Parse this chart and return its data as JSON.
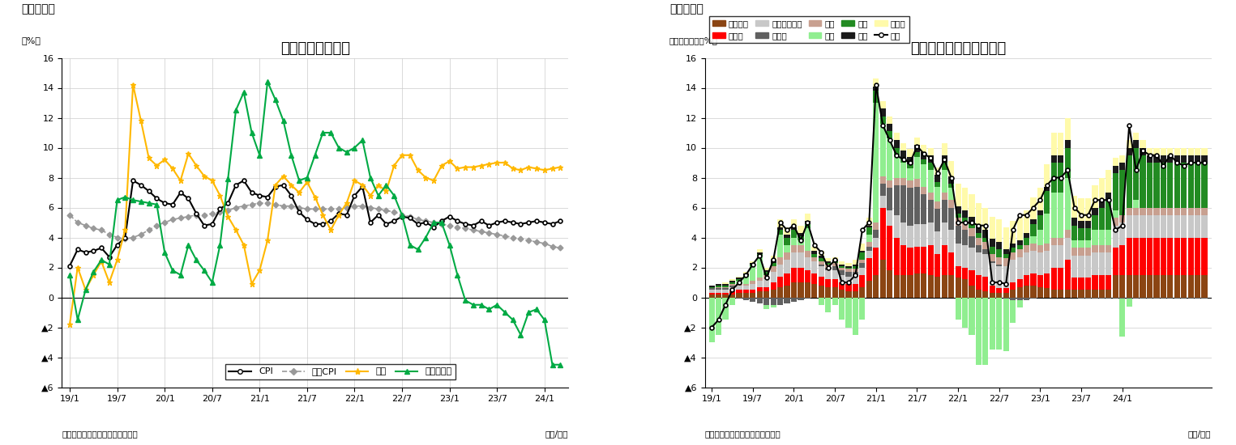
{
  "fig1": {
    "title": "消費者物価上昇率",
    "header": "（図表１）",
    "ylabel": "（%）",
    "footer_left": "（資料）インド統計・計画実施省",
    "footer_right": "（年/月）",
    "ylim": [
      -6,
      16
    ],
    "xtick_labels": [
      "19/1",
      "19/7",
      "20/1",
      "20/7",
      "21/1",
      "21/7",
      "22/1",
      "22/7",
      "23/1",
      "23/7",
      "24/1"
    ],
    "xtick_positions": [
      0,
      6,
      12,
      18,
      24,
      30,
      36,
      42,
      48,
      54,
      60
    ],
    "CPI": [
      2.1,
      3.2,
      3.0,
      3.1,
      3.3,
      2.7,
      3.5,
      4.0,
      7.8,
      7.5,
      7.1,
      6.6,
      6.3,
      6.2,
      7.0,
      6.6,
      5.6,
      4.8,
      4.9,
      5.9,
      6.3,
      7.5,
      7.8,
      7.0,
      6.8,
      6.7,
      7.4,
      7.5,
      6.8,
      5.7,
      5.2,
      4.9,
      4.9,
      5.1,
      5.6,
      5.5,
      6.8,
      7.4,
      5.0,
      5.5,
      4.9,
      5.1,
      5.4,
      5.3,
      4.9,
      5.0,
      4.7,
      5.1,
      5.4,
      5.1,
      4.9,
      4.8,
      5.1,
      4.8,
      5.0,
      5.1,
      5.0,
      4.9,
      5.0,
      5.1,
      5.0,
      4.9,
      5.1
    ],
    "CoreCPI": [
      5.5,
      5.0,
      4.8,
      4.6,
      4.5,
      4.2,
      4.0,
      3.9,
      4.0,
      4.2,
      4.5,
      4.8,
      5.0,
      5.2,
      5.3,
      5.4,
      5.5,
      5.5,
      5.6,
      5.7,
      5.8,
      6.0,
      6.1,
      6.2,
      6.3,
      6.3,
      6.2,
      6.1,
      6.1,
      6.0,
      5.9,
      5.9,
      5.9,
      5.9,
      5.9,
      6.0,
      6.1,
      6.1,
      6.0,
      5.9,
      5.8,
      5.7,
      5.5,
      5.4,
      5.2,
      5.1,
      5.0,
      4.9,
      4.8,
      4.7,
      4.6,
      4.5,
      4.4,
      4.3,
      4.2,
      4.1,
      4.0,
      3.9,
      3.8,
      3.7,
      3.6,
      3.4,
      3.3
    ],
    "Food": [
      -1.8,
      2.0,
      0.5,
      1.5,
      2.4,
      1.0,
      2.5,
      4.5,
      14.2,
      11.8,
      9.3,
      8.8,
      9.2,
      8.6,
      7.8,
      9.6,
      8.8,
      8.1,
      7.8,
      6.8,
      5.4,
      4.5,
      3.5,
      0.9,
      1.8,
      3.8,
      7.5,
      8.1,
      7.5,
      7.0,
      7.7,
      6.7,
      5.5,
      4.5,
      5.5,
      6.3,
      7.8,
      7.5,
      6.8,
      7.5,
      7.1,
      8.8,
      9.5,
      9.5,
      8.5,
      8.0,
      7.8,
      8.8,
      9.1,
      8.6,
      8.7,
      8.7,
      8.8,
      8.9,
      9.0,
      9.0,
      8.6,
      8.5,
      8.7,
      8.6,
      8.5,
      8.6,
      8.7
    ],
    "FuelPower": [
      1.5,
      -1.5,
      0.5,
      1.7,
      2.5,
      2.2,
      6.5,
      6.7,
      6.5,
      6.4,
      6.3,
      6.2,
      3.0,
      1.8,
      1.5,
      3.5,
      2.5,
      1.8,
      1.0,
      3.5,
      7.9,
      12.5,
      13.7,
      11.0,
      9.5,
      14.4,
      13.2,
      11.8,
      9.5,
      7.8,
      8.0,
      9.5,
      11.0,
      11.0,
      10.0,
      9.7,
      10.0,
      10.5,
      8.0,
      6.8,
      7.5,
      6.8,
      5.5,
      3.5,
      3.2,
      4.0,
      5.0,
      5.0,
      3.5,
      1.5,
      -0.2,
      -0.5,
      -0.5,
      -0.8,
      -0.5,
      -1.0,
      -1.5,
      -2.5,
      -1.0,
      -0.8,
      -1.5,
      -4.5,
      -4.5
    ]
  },
  "fig2": {
    "title": "食品価格指数の要因分解",
    "header": "（図表２）",
    "ylabel": "（前年同月比、%）",
    "footer_left": "（資料）インド統計・計画実施省",
    "footer_right": "（年/月）",
    "ylim": [
      -6,
      16
    ],
    "xtick_labels": [
      "19/1",
      "19/7",
      "20/1",
      "20/7",
      "21/1",
      "21/7",
      "22/1",
      "22/7",
      "23/1",
      "23/7",
      "24/1"
    ],
    "xtick_positions": [
      0,
      6,
      12,
      18,
      24,
      30,
      36,
      42,
      48,
      54,
      60
    ],
    "legend_items": [
      {
        "label": "穀物製品",
        "color": "#8B4513",
        "type": "bar"
      },
      {
        "label": "肉・魚",
        "color": "#FF0000",
        "type": "bar"
      },
      {
        "label": "牛乳・乳製品",
        "color": "#C8C8C8",
        "type": "bar"
      },
      {
        "label": "食用油",
        "color": "#606060",
        "type": "bar"
      },
      {
        "label": "果物",
        "color": "#C8A090",
        "type": "bar"
      },
      {
        "label": "野菜",
        "color": "#90EE90",
        "type": "bar"
      },
      {
        "label": "豆類",
        "color": "#228B22",
        "type": "bar"
      },
      {
        "label": "砂糖",
        "color": "#1A1A1A",
        "type": "bar"
      },
      {
        "label": "香辛料",
        "color": "#FFFAAA",
        "type": "bar"
      },
      {
        "label": "食品",
        "color": "#000000",
        "type": "line"
      }
    ],
    "colors": {
      "穀物製品": "#8B4513",
      "肉・魚": "#FF0000",
      "牛乳・乳製品": "#C8C8C8",
      "食用油": "#606060",
      "果物": "#C8A090",
      "野菜": "#90EE90",
      "豆類": "#228B22",
      "砂糖": "#1A1A1A",
      "香辛料": "#FFFAAA"
    },
    "food_line": [
      -2.0,
      -1.5,
      -0.5,
      0.5,
      1.0,
      1.5,
      2.2,
      2.8,
      1.3,
      2.5,
      5.0,
      4.5,
      4.8,
      3.8,
      5.0,
      3.5,
      3.0,
      2.0,
      2.5,
      1.0,
      1.0,
      1.5,
      4.5,
      5.0,
      14.2,
      11.5,
      10.5,
      9.5,
      9.2,
      9.0,
      10.1,
      9.6,
      9.3,
      8.3,
      9.2,
      8.0,
      5.0,
      5.0,
      5.0,
      4.8,
      4.8,
      1.0,
      1.0,
      0.9,
      4.5,
      5.5,
      5.5,
      6.0,
      6.5,
      7.5,
      8.0,
      8.0,
      8.5,
      6.0,
      5.5,
      5.5,
      6.5,
      6.5,
      6.5,
      4.5,
      4.8,
      11.5,
      8.5,
      9.8,
      9.5,
      9.5,
      8.8,
      9.5,
      9.0,
      8.8,
      9.0,
      9.0,
      9.0
    ],
    "stacked_data": {
      "穀物製品": [
        0.2,
        0.2,
        0.2,
        0.2,
        0.3,
        0.3,
        0.3,
        0.4,
        0.4,
        0.5,
        0.7,
        0.8,
        1.0,
        1.0,
        1.0,
        0.9,
        0.8,
        0.7,
        0.7,
        0.5,
        0.4,
        0.4,
        0.7,
        1.1,
        1.5,
        2.5,
        1.8,
        1.5,
        1.5,
        1.5,
        1.6,
        1.6,
        1.5,
        1.4,
        1.5,
        1.5,
        1.3,
        1.2,
        0.8,
        0.5,
        0.4,
        0.3,
        0.3,
        0.3,
        0.5,
        0.7,
        0.8,
        0.8,
        0.7,
        0.6,
        0.5,
        0.5,
        0.5,
        0.5,
        0.5,
        0.5,
        0.5,
        0.5,
        0.5,
        1.5,
        1.5,
        1.5,
        1.5,
        1.5,
        1.5,
        1.5,
        1.5,
        1.5,
        1.5,
        1.5,
        1.5,
        1.5,
        1.5
      ],
      "肉・魚": [
        0.1,
        0.1,
        0.1,
        0.2,
        0.2,
        0.2,
        0.2,
        0.3,
        0.3,
        0.5,
        0.7,
        0.8,
        1.0,
        1.0,
        0.8,
        0.7,
        0.6,
        0.5,
        0.5,
        0.5,
        0.5,
        0.5,
        0.8,
        1.5,
        1.8,
        3.5,
        3.0,
        2.5,
        2.0,
        1.8,
        1.8,
        1.8,
        2.0,
        1.5,
        2.0,
        1.5,
        0.8,
        0.8,
        1.0,
        1.0,
        1.0,
        0.5,
        0.3,
        0.3,
        0.5,
        0.5,
        0.7,
        0.8,
        0.8,
        1.0,
        1.5,
        1.5,
        2.0,
        0.8,
        0.8,
        0.8,
        1.0,
        1.0,
        1.0,
        1.8,
        2.0,
        2.5,
        2.5,
        2.5,
        2.5,
        2.5,
        2.5,
        2.5,
        2.5,
        2.5,
        2.5,
        2.5,
        2.5
      ],
      "牛乳・乳製品": [
        0.2,
        0.2,
        0.2,
        0.3,
        0.3,
        0.3,
        0.4,
        0.4,
        0.5,
        0.7,
        0.8,
        0.9,
        1.0,
        1.0,
        0.9,
        0.8,
        0.7,
        0.6,
        0.6,
        0.5,
        0.5,
        0.5,
        0.5,
        0.5,
        0.7,
        0.8,
        1.0,
        1.5,
        1.5,
        1.5,
        1.5,
        1.5,
        1.5,
        1.5,
        1.5,
        1.5,
        1.5,
        1.5,
        1.5,
        1.5,
        1.5,
        1.5,
        1.5,
        1.5,
        1.5,
        1.5,
        1.5,
        1.5,
        1.5,
        1.5,
        1.5,
        1.5,
        1.5,
        1.5,
        1.5,
        1.5,
        1.5,
        1.5,
        1.5,
        1.5,
        1.5,
        1.5,
        1.5,
        1.5,
        1.5,
        1.5,
        1.5,
        1.5,
        1.5,
        1.5,
        1.5,
        1.5,
        1.5
      ],
      "食用油": [
        0.1,
        0.1,
        0.1,
        0.1,
        -0.1,
        -0.2,
        -0.3,
        -0.4,
        -0.5,
        -0.5,
        -0.5,
        -0.4,
        -0.3,
        -0.2,
        -0.1,
        0.0,
        0.1,
        0.2,
        0.3,
        0.3,
        0.3,
        0.3,
        0.3,
        0.3,
        0.5,
        0.8,
        1.5,
        2.0,
        2.5,
        2.5,
        2.5,
        2.0,
        1.5,
        1.5,
        1.5,
        1.5,
        1.2,
        1.0,
        0.8,
        0.5,
        0.3,
        0.1,
        0.1,
        -0.1,
        -0.2,
        -0.2,
        -0.2,
        -0.1,
        0.0,
        0.0,
        0.0,
        0.0,
        0.0,
        0.0,
        -0.1,
        -0.1,
        -0.1,
        -0.1,
        -0.1,
        -0.1,
        -0.1,
        -0.1,
        -0.1,
        -0.1,
        -0.1,
        -0.1,
        -0.1,
        -0.1,
        -0.1,
        -0.1,
        -0.1,
        -0.1,
        -0.1
      ],
      "果物": [
        0.0,
        0.1,
        0.1,
        0.1,
        0.1,
        0.1,
        0.2,
        0.2,
        0.3,
        0.4,
        0.5,
        0.5,
        0.5,
        0.5,
        0.4,
        0.3,
        0.2,
        0.2,
        0.2,
        0.2,
        0.2,
        0.2,
        0.2,
        0.3,
        0.5,
        0.5,
        0.5,
        0.5,
        0.5,
        0.5,
        0.5,
        0.5,
        0.5,
        0.5,
        0.5,
        0.5,
        0.5,
        0.5,
        0.5,
        0.5,
        0.5,
        0.5,
        0.5,
        0.5,
        0.5,
        0.5,
        0.5,
        0.5,
        0.5,
        0.5,
        0.5,
        0.5,
        0.5,
        0.5,
        0.5,
        0.5,
        0.5,
        0.5,
        0.5,
        0.5,
        0.5,
        0.5,
        0.5,
        0.5,
        0.5,
        0.5,
        0.5,
        0.5,
        0.5,
        0.5,
        0.5,
        0.5,
        0.5
      ],
      "野菜": [
        -3.0,
        -2.5,
        -1.5,
        -0.5,
        0.2,
        0.5,
        1.0,
        1.5,
        -0.3,
        -0.2,
        1.5,
        0.5,
        0.5,
        0.3,
        1.5,
        0.0,
        -0.5,
        -1.0,
        -0.5,
        -1.5,
        -2.0,
        -2.5,
        -1.5,
        0.5,
        8.0,
        3.5,
        2.8,
        1.5,
        1.0,
        0.8,
        1.5,
        1.5,
        1.5,
        1.0,
        1.5,
        0.8,
        -1.5,
        -2.0,
        -2.5,
        -4.5,
        -4.5,
        -3.5,
        -3.5,
        -3.5,
        -1.5,
        -0.5,
        0.0,
        0.5,
        1.0,
        2.0,
        3.0,
        3.0,
        3.5,
        0.5,
        0.5,
        0.5,
        1.0,
        1.0,
        1.0,
        0.5,
        -2.5,
        -0.5,
        0.5,
        0.0,
        0.0,
        0.0,
        0.0,
        0.0,
        0.0,
        0.0,
        0.0,
        0.0,
        0.0
      ],
      "豆類": [
        0.1,
        0.1,
        0.1,
        0.1,
        0.1,
        0.1,
        0.1,
        0.1,
        0.2,
        0.2,
        0.3,
        0.5,
        0.5,
        0.3,
        0.3,
        0.2,
        0.2,
        0.1,
        0.1,
        0.1,
        0.1,
        0.2,
        0.5,
        0.5,
        0.8,
        0.5,
        0.5,
        0.5,
        0.3,
        0.3,
        0.3,
        0.3,
        0.5,
        0.3,
        0.5,
        0.3,
        0.3,
        0.3,
        0.3,
        0.3,
        0.3,
        0.5,
        0.5,
        0.3,
        0.3,
        0.3,
        0.5,
        0.8,
        1.0,
        1.5,
        2.0,
        2.0,
        2.0,
        1.0,
        0.8,
        0.8,
        1.0,
        1.5,
        2.0,
        2.5,
        3.0,
        3.5,
        3.5,
        3.5,
        3.0,
        3.0,
        3.0,
        3.0,
        3.0,
        3.0,
        3.0,
        3.0,
        3.0
      ],
      "砂糖": [
        0.1,
        0.1,
        0.1,
        0.1,
        0.1,
        0.1,
        0.1,
        0.1,
        0.1,
        0.2,
        0.2,
        0.2,
        0.2,
        0.2,
        0.2,
        0.2,
        0.2,
        0.1,
        0.1,
        0.1,
        0.1,
        0.1,
        0.1,
        0.1,
        0.3,
        0.5,
        0.5,
        0.5,
        0.5,
        0.5,
        0.5,
        0.5,
        0.5,
        0.5,
        0.5,
        0.5,
        0.5,
        0.5,
        0.5,
        0.5,
        0.5,
        0.5,
        0.5,
        0.3,
        0.3,
        0.3,
        0.3,
        0.3,
        0.3,
        0.3,
        0.5,
        0.5,
        0.5,
        0.5,
        0.5,
        0.5,
        0.5,
        0.5,
        0.5,
        0.5,
        0.5,
        0.5,
        0.5,
        0.5,
        0.5,
        0.5,
        0.5,
        0.5,
        0.5,
        0.5,
        0.5,
        0.5,
        0.5
      ],
      "香辛料": [
        0.0,
        0.0,
        0.1,
        0.1,
        0.1,
        0.1,
        0.1,
        0.2,
        0.2,
        0.3,
        0.5,
        0.5,
        0.5,
        0.5,
        0.5,
        0.3,
        0.3,
        0.2,
        0.2,
        0.2,
        0.2,
        0.3,
        0.5,
        0.5,
        0.5,
        0.5,
        0.5,
        0.5,
        0.5,
        0.5,
        0.5,
        0.5,
        0.5,
        0.5,
        0.8,
        1.0,
        1.5,
        1.5,
        1.5,
        1.5,
        1.5,
        1.5,
        1.5,
        1.5,
        1.5,
        1.5,
        1.5,
        1.5,
        1.5,
        1.5,
        1.5,
        1.5,
        1.5,
        1.5,
        1.5,
        1.5,
        1.5,
        1.5,
        1.5,
        0.5,
        0.5,
        0.5,
        0.5,
        0.5,
        0.5,
        0.5,
        0.5,
        0.5,
        0.5,
        0.5,
        0.5,
        0.5,
        0.5
      ]
    }
  }
}
